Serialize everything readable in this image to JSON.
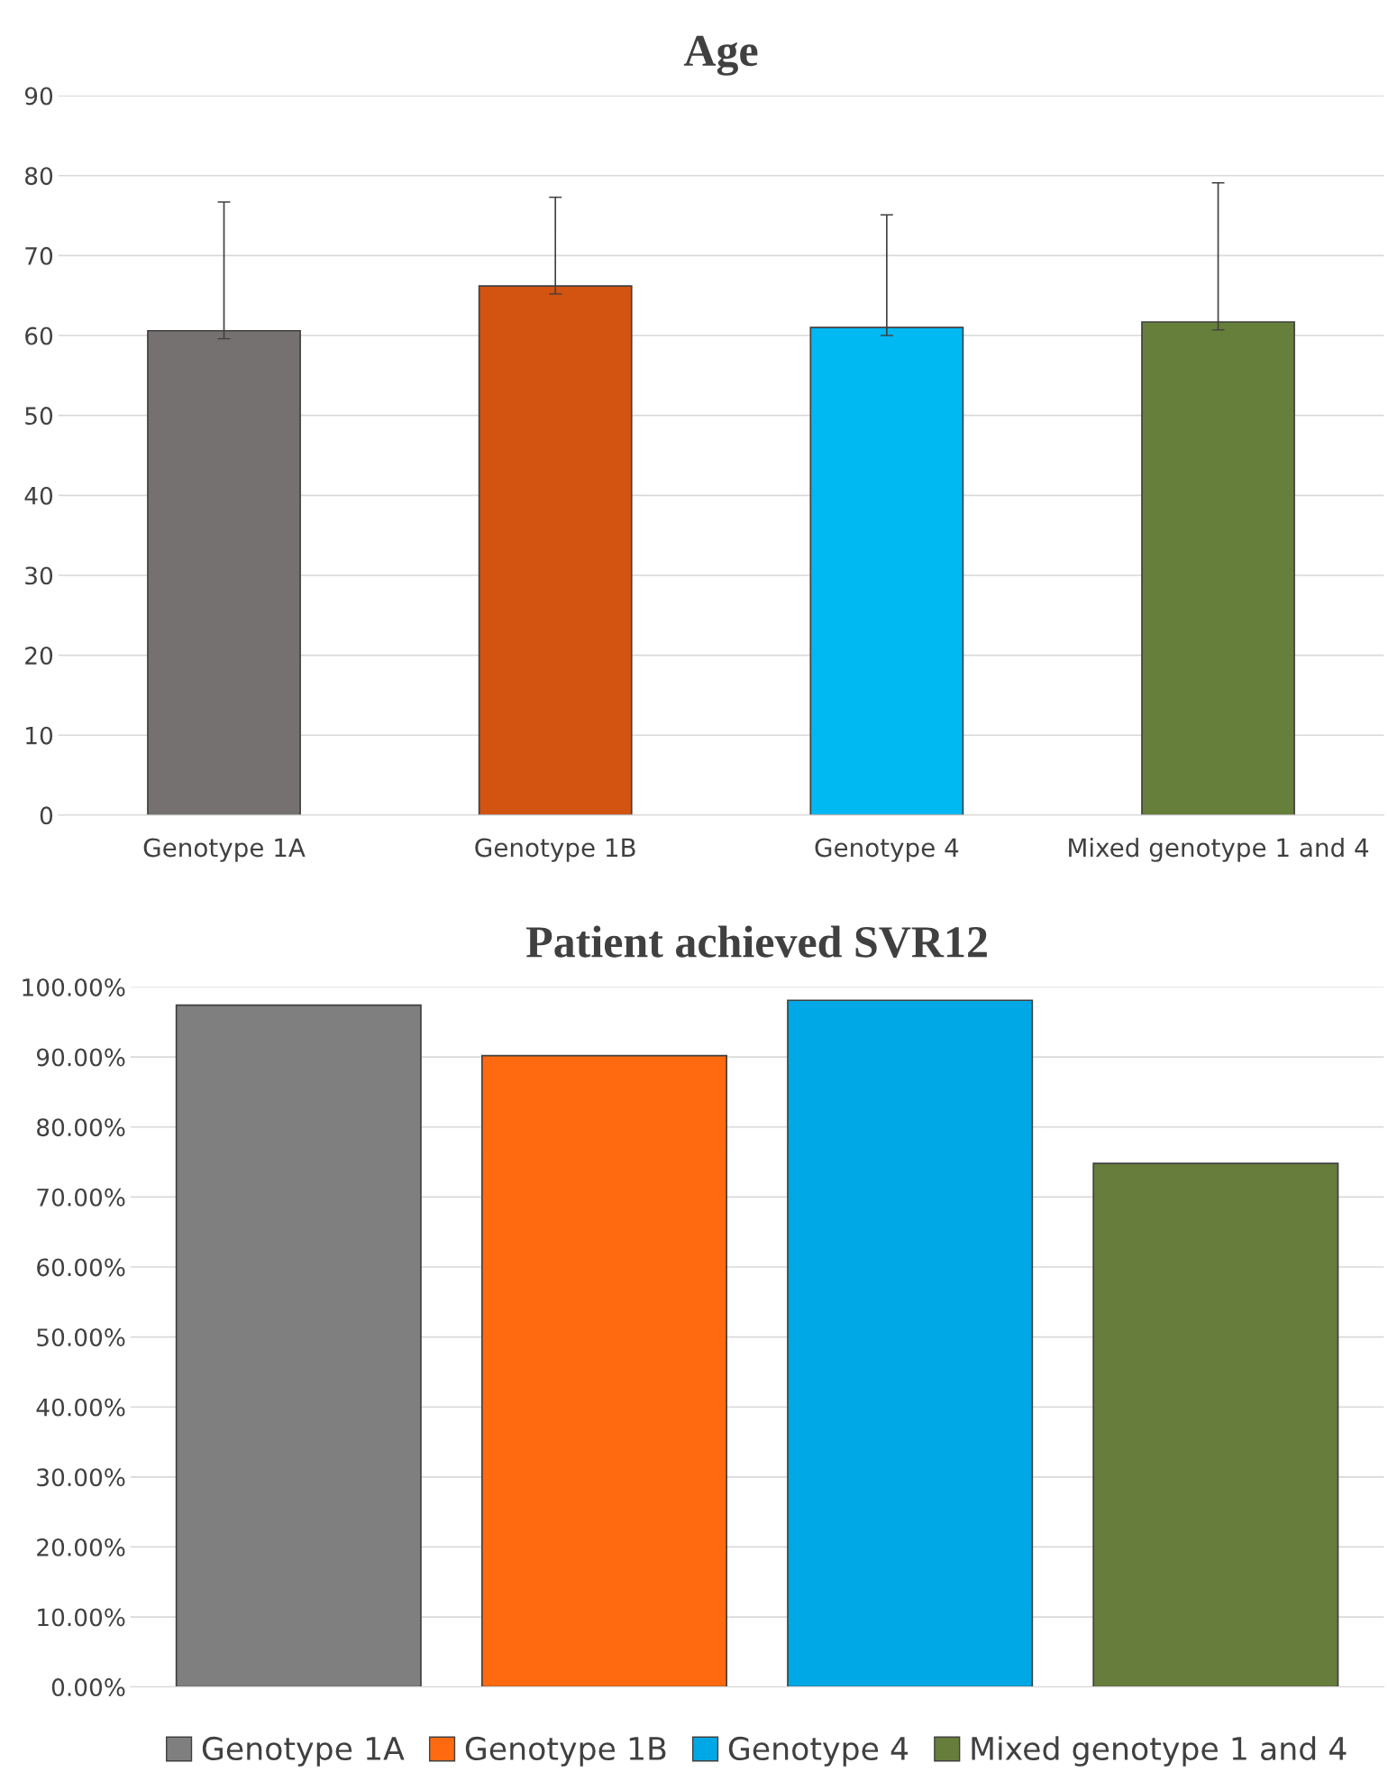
{
  "chart_data": [
    {
      "type": "bar",
      "title": "Age",
      "categories": [
        "Genotype 1A",
        "Genotype 1B",
        "Genotype 4",
        "Mixed genotype 1 and 4"
      ],
      "values": [
        60.6,
        66.2,
        61.0,
        61.7
      ],
      "colors": [
        "#767171",
        "#d35310",
        "#00b8f2",
        "#667f3b"
      ],
      "errors": [
        [
          59.6,
          76.7
        ],
        [
          65.2,
          77.3
        ],
        [
          60.0,
          75.1
        ],
        [
          60.7,
          79.1
        ]
      ],
      "ylim": [
        0,
        90
      ],
      "yticks": [
        0,
        10,
        20,
        30,
        40,
        50,
        60,
        70,
        80,
        90
      ],
      "grid": "y",
      "legend": false
    },
    {
      "type": "bar",
      "title": "Patient achieved SVR12",
      "categories": [
        null
      ],
      "series": [
        {
          "name": "Genotype 1A",
          "color": "#7f7f7f",
          "values": [
            97.4
          ]
        },
        {
          "name": "Genotype 1B",
          "color": "#ff6a10",
          "values": [
            90.2
          ]
        },
        {
          "name": "Genotype 4",
          "color": "#00a8e6",
          "values": [
            98.1
          ]
        },
        {
          "name": "Mixed genotype 1 and 4",
          "color": "#667d3c",
          "values": [
            74.8
          ]
        }
      ],
      "ylim": [
        0,
        100
      ],
      "yticks": [
        {
          "value": 0,
          "label": "0.00%"
        },
        {
          "value": 10,
          "label": "10.00%"
        },
        {
          "value": 20,
          "label": "20.00%"
        },
        {
          "value": 30,
          "label": "30.00%"
        },
        {
          "value": 40,
          "label": "40.00%"
        },
        {
          "value": 50,
          "label": "50.00%"
        },
        {
          "value": 60,
          "label": "60.00%"
        },
        {
          "value": 70,
          "label": "70.00%"
        },
        {
          "value": 80,
          "label": "80.00%"
        },
        {
          "value": 90,
          "label": "90.00%"
        },
        {
          "value": 100,
          "label": "100.00%"
        }
      ],
      "grid": "y",
      "legend": "bottom"
    }
  ]
}
